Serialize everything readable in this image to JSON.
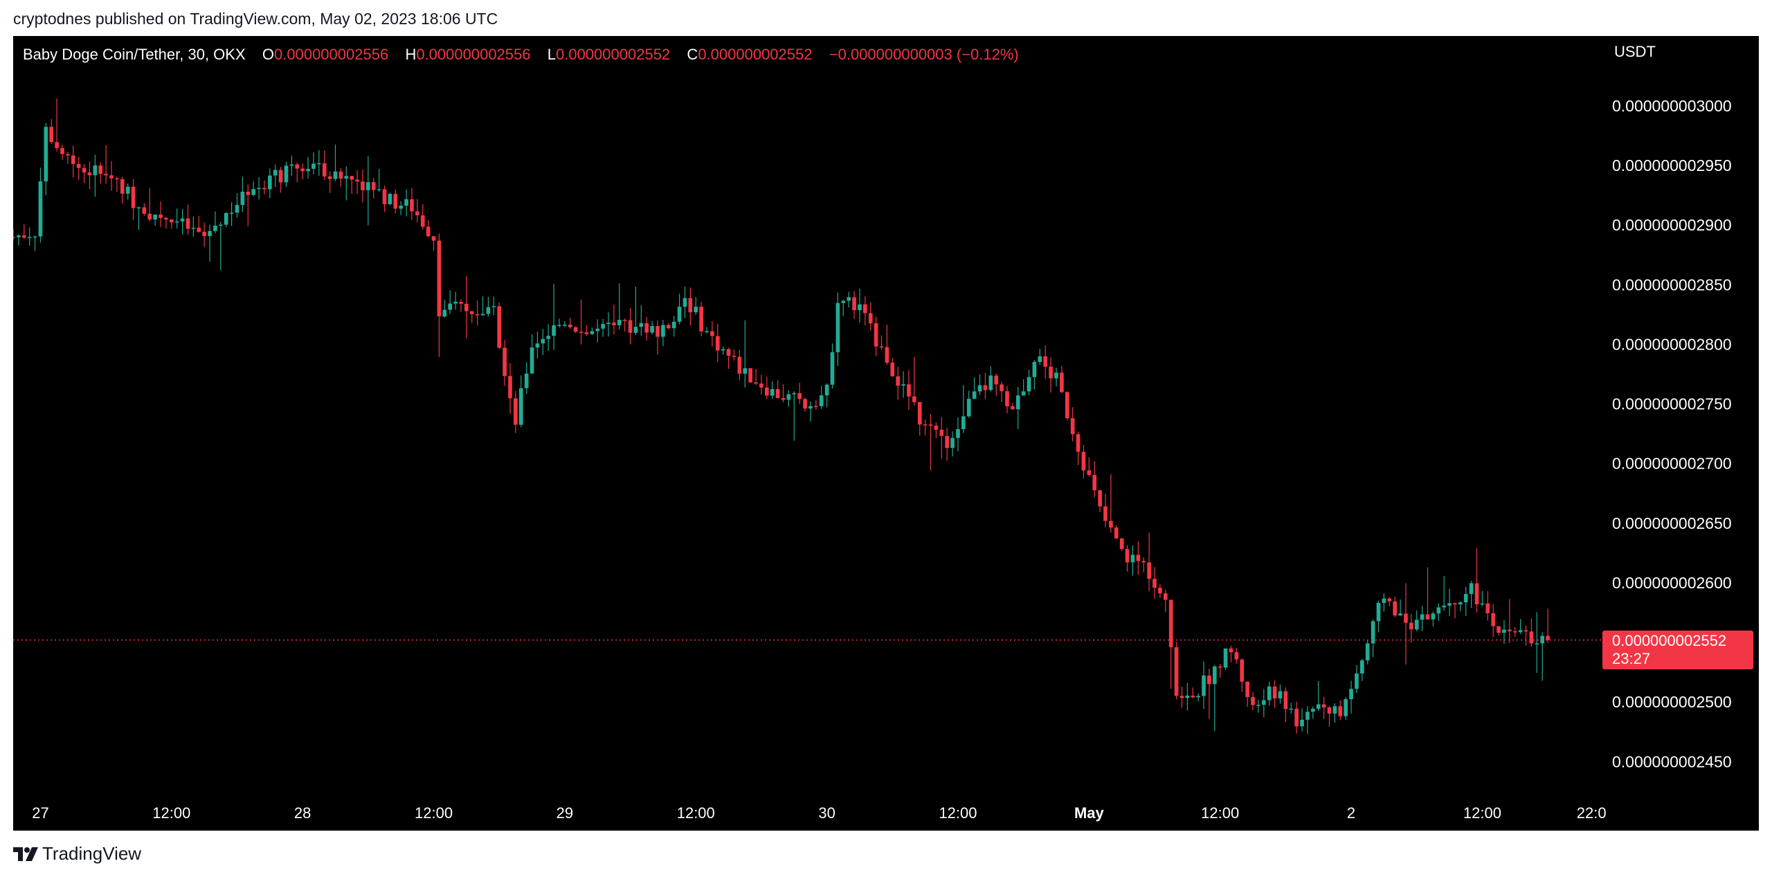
{
  "publisher_line": "cryptodnes published on TradingView.com, May 02, 2023 18:06 UTC",
  "footer_brand": "TradingView",
  "legend": {
    "symbol": "Baby Doge Coin/Tether, 30, OKX",
    "open_label": "O",
    "open": "0.000000002556",
    "high_label": "H",
    "high": "0.000000002556",
    "low_label": "L",
    "low": "0.000000002552",
    "close_label": "C",
    "close": "0.000000002552",
    "change": "−0.000000000003 (−0.12%)"
  },
  "price_axis_unit": "USDT",
  "last_price_tag": {
    "price": "0.000000002552",
    "countdown": "23:27"
  },
  "colors": {
    "background": "#000000",
    "up": "#22ab94",
    "down": "#f23645",
    "text": "#ffffff"
  },
  "chart_data": {
    "type": "candlestick",
    "interval": "30",
    "exchange": "OKX",
    "y_tick_labels": [
      "0.000000003000",
      "0.000000002950",
      "0.000000002900",
      "0.000000002850",
      "0.000000002800",
      "0.000000002750",
      "0.000000002700",
      "0.000000002650",
      "0.000000002600",
      "0.000000002500",
      "0.000000002450"
    ],
    "y_ticks": [
      3000,
      2950,
      2900,
      2850,
      2800,
      2750,
      2700,
      2650,
      2600,
      2500,
      2450
    ],
    "y_unit_scale": "values in units of 1e-12 USDT",
    "ylim": [
      2420,
      3047
    ],
    "x_range": [
      "Apr 26 21:30",
      "May 2 23:00"
    ],
    "x_tick_labels": [
      {
        "label": "27",
        "time": "Apr 27 00:00"
      },
      {
        "label": "12:00",
        "time": "Apr 27 12:00"
      },
      {
        "label": "28",
        "time": "Apr 28 00:00"
      },
      {
        "label": "12:00",
        "time": "Apr 28 12:00"
      },
      {
        "label": "29",
        "time": "Apr 29 00:00"
      },
      {
        "label": "12:00",
        "time": "Apr 29 12:00"
      },
      {
        "label": "30",
        "time": "Apr 30 00:00"
      },
      {
        "label": "12:00",
        "time": "Apr 30 12:00"
      },
      {
        "label": "May",
        "time": "May 1 00:00",
        "bold": true
      },
      {
        "label": "12:00",
        "time": "May 1 12:00"
      },
      {
        "label": "2",
        "time": "May 2 00:00"
      },
      {
        "label": "12:00",
        "time": "May 2 12:00"
      },
      {
        "label": "22:0",
        "time": "May 2 22:00"
      }
    ],
    "last_price": 2552,
    "close_path": [
      {
        "t": "Apr 26 21:30",
        "v": 2890
      },
      {
        "t": "Apr 26 23:30",
        "v": 2895
      },
      {
        "t": "Apr 27 00:30",
        "v": 2980
      },
      {
        "t": "Apr 27 02:00",
        "v": 2960
      },
      {
        "t": "Apr 27 04:00",
        "v": 2945
      },
      {
        "t": "Apr 27 06:30",
        "v": 2945
      },
      {
        "t": "Apr 27 09:00",
        "v": 2915
      },
      {
        "t": "Apr 27 12:00",
        "v": 2905
      },
      {
        "t": "Apr 27 15:00",
        "v": 2890
      },
      {
        "t": "Apr 27 17:00",
        "v": 2910
      },
      {
        "t": "Apr 27 20:00",
        "v": 2935
      },
      {
        "t": "Apr 27 23:00",
        "v": 2945
      },
      {
        "t": "Apr 28 01:00",
        "v": 2950
      },
      {
        "t": "Apr 28 04:00",
        "v": 2940
      },
      {
        "t": "Apr 28 06:00",
        "v": 2935
      },
      {
        "t": "Apr 28 08:00",
        "v": 2920
      },
      {
        "t": "Apr 28 10:00",
        "v": 2915
      },
      {
        "t": "Apr 28 12:00",
        "v": 2890
      },
      {
        "t": "Apr 28 12:30",
        "v": 2830
      },
      {
        "t": "Apr 28 15:00",
        "v": 2830
      },
      {
        "t": "Apr 28 17:30",
        "v": 2825
      },
      {
        "t": "Apr 28 19:30",
        "v": 2735
      },
      {
        "t": "Apr 28 21:00",
        "v": 2800
      },
      {
        "t": "Apr 29 00:00",
        "v": 2820
      },
      {
        "t": "Apr 29 02:00",
        "v": 2810
      },
      {
        "t": "Apr 29 06:00",
        "v": 2815
      },
      {
        "t": "Apr 29 09:00",
        "v": 2810
      },
      {
        "t": "Apr 29 11:00",
        "v": 2840
      },
      {
        "t": "Apr 29 13:00",
        "v": 2810
      },
      {
        "t": "Apr 29 16:00",
        "v": 2780
      },
      {
        "t": "Apr 29 19:00",
        "v": 2760
      },
      {
        "t": "Apr 29 22:00",
        "v": 2750
      },
      {
        "t": "Apr 30 00:00",
        "v": 2760
      },
      {
        "t": "Apr 30 01:00",
        "v": 2840
      },
      {
        "t": "Apr 30 03:00",
        "v": 2830
      },
      {
        "t": "Apr 30 06:00",
        "v": 2780
      },
      {
        "t": "Apr 30 09:00",
        "v": 2730
      },
      {
        "t": "Apr 30 11:00",
        "v": 2720
      },
      {
        "t": "Apr 30 13:00",
        "v": 2750
      },
      {
        "t": "Apr 30 15:00",
        "v": 2770
      },
      {
        "t": "Apr 30 17:00",
        "v": 2740
      },
      {
        "t": "Apr 30 19:00",
        "v": 2790
      },
      {
        "t": "Apr 30 21:00",
        "v": 2770
      },
      {
        "t": "Apr 30 23:00",
        "v": 2715
      },
      {
        "t": "May 1 01:00",
        "v": 2660
      },
      {
        "t": "May 1 03:00",
        "v": 2625
      },
      {
        "t": "May 1 05:00",
        "v": 2615
      },
      {
        "t": "May 1 07:00",
        "v": 2590
      },
      {
        "t": "May 1 08:00",
        "v": 2505
      },
      {
        "t": "May 1 10:00",
        "v": 2510
      },
      {
        "t": "May 1 13:00",
        "v": 2545
      },
      {
        "t": "May 1 15:00",
        "v": 2495
      },
      {
        "t": "May 1 17:00",
        "v": 2510
      },
      {
        "t": "May 1 19:00",
        "v": 2485
      },
      {
        "t": "May 1 21:00",
        "v": 2500
      },
      {
        "t": "May 1 23:00",
        "v": 2490
      },
      {
        "t": "May 2 01:00",
        "v": 2535
      },
      {
        "t": "May 2 03:00",
        "v": 2590
      },
      {
        "t": "May 2 05:00",
        "v": 2565
      },
      {
        "t": "May 2 07:00",
        "v": 2570
      },
      {
        "t": "May 2 09:00",
        "v": 2585
      },
      {
        "t": "May 2 11:00",
        "v": 2595
      },
      {
        "t": "May 2 13:00",
        "v": 2560
      },
      {
        "t": "May 2 15:00",
        "v": 2565
      },
      {
        "t": "May 2 16:30",
        "v": 2555
      },
      {
        "t": "May 2 18:00",
        "v": 2552
      }
    ]
  }
}
